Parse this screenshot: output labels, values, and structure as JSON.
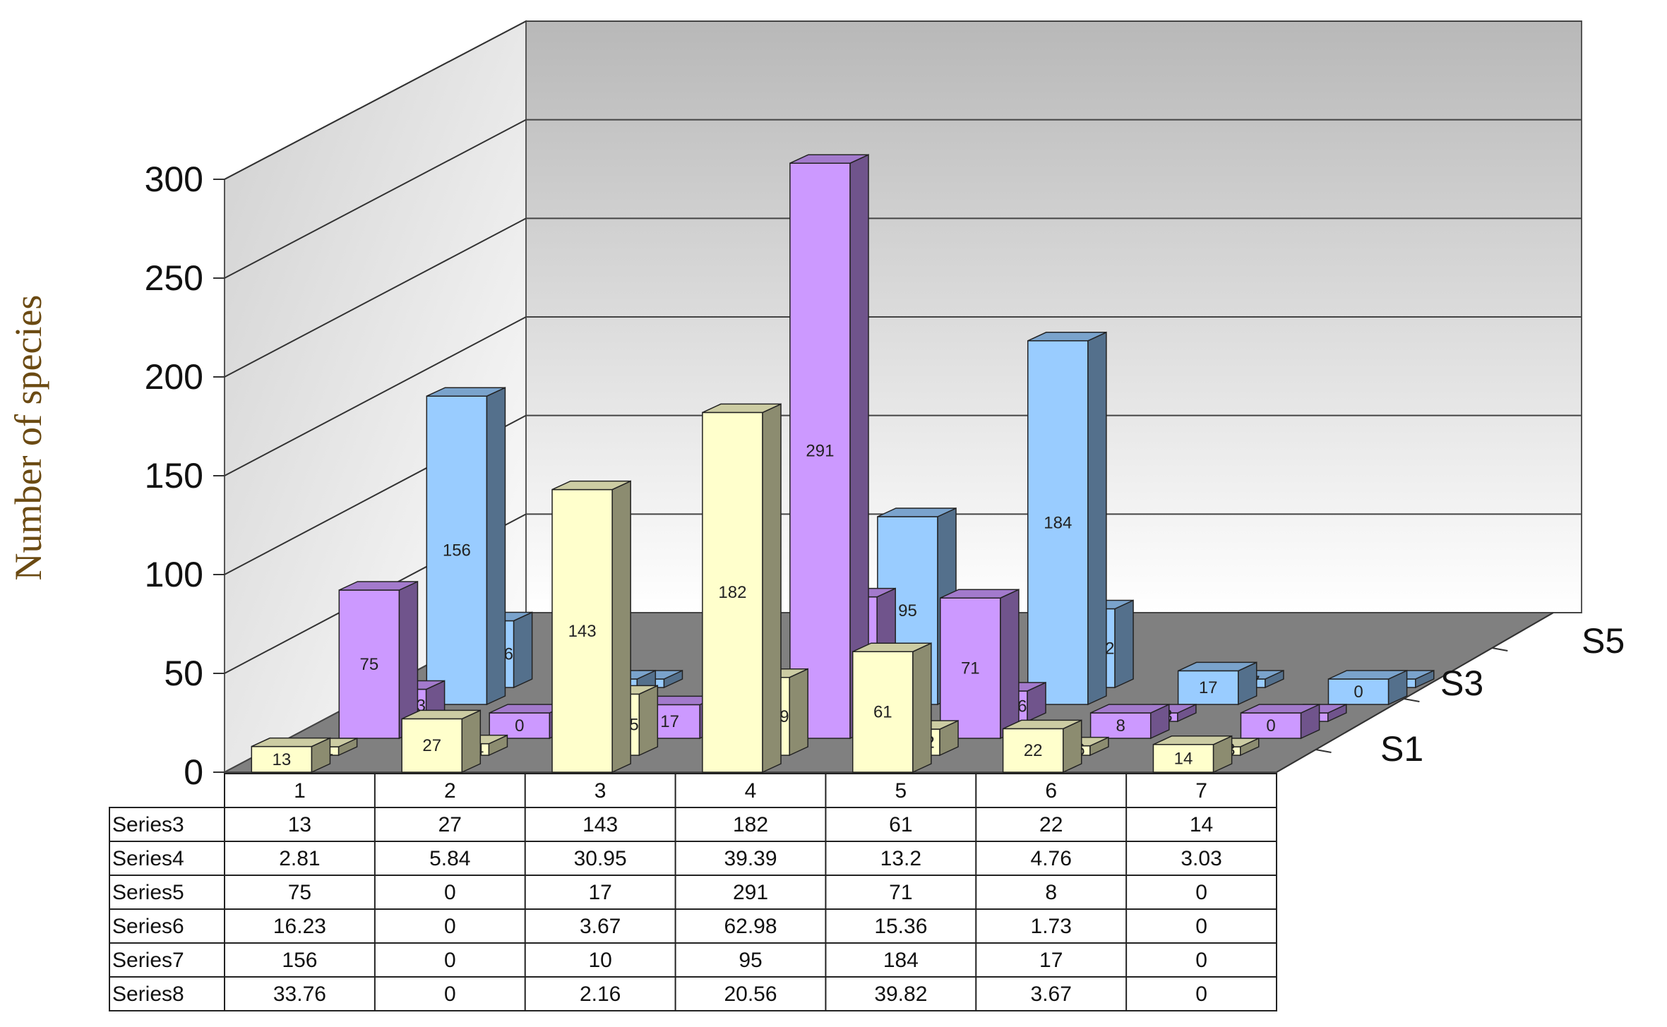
{
  "chart_data": {
    "type": "bar",
    "variant": "3d-column-with-data-table",
    "ylabel": "Number of species",
    "y_ticks": [
      "0",
      "50",
      "100",
      "150",
      "200",
      "250",
      "300"
    ],
    "ylim": [
      0,
      300
    ],
    "categories": [
      "1",
      "2",
      "3",
      "4",
      "5",
      "6",
      "7"
    ],
    "depth_labels": [
      "S1",
      "S3",
      "S5"
    ],
    "series": [
      {
        "name": "Series3",
        "values": [
          13,
          27,
          143,
          182,
          61,
          22,
          14
        ],
        "drawn_row": "S1",
        "color": "#ffffcc"
      },
      {
        "name": "Series4",
        "values": [
          2.81,
          5.84,
          30.95,
          39.39,
          13.2,
          4.76,
          3.03
        ],
        "drawn_row": "S2",
        "color": "#ffffcc"
      },
      {
        "name": "Series5",
        "values": [
          75,
          0,
          17,
          291,
          71,
          8,
          0
        ],
        "drawn_row": "S3",
        "color": "#cc99ff"
      },
      {
        "name": "Series6",
        "values": [
          16.23,
          0,
          3.67,
          62.98,
          15.36,
          1.73,
          0
        ],
        "drawn_row": "S4",
        "color": "#cc99ff"
      },
      {
        "name": "Series7",
        "values": [
          156,
          0,
          10,
          95,
          184,
          17,
          0
        ],
        "drawn_row": "S5",
        "color": "#99ccff"
      },
      {
        "name": "Series8",
        "values": [
          33.76,
          0,
          2.16,
          20.56,
          39.82,
          3.67,
          0
        ],
        "drawn_row": "S6",
        "color": "#99ccff"
      }
    ],
    "table_rows": [
      {
        "name": "Series3",
        "cells": [
          "13",
          "27",
          "143",
          "182",
          "61",
          "22",
          "14"
        ]
      },
      {
        "name": "Series4",
        "cells": [
          "2.81",
          "5.84",
          "30.95",
          "39.39",
          "13.2",
          "4.76",
          "3.03"
        ]
      },
      {
        "name": "Series5",
        "cells": [
          "75",
          "0",
          "17",
          "291",
          "71",
          "8",
          "0"
        ]
      },
      {
        "name": "Series6",
        "cells": [
          "16.23",
          "0",
          "3.67",
          "62.98",
          "15.36",
          "1.73",
          "0"
        ]
      },
      {
        "name": "Series7",
        "cells": [
          "156",
          "0",
          "10",
          "95",
          "184",
          "17",
          "0"
        ]
      },
      {
        "name": "Series8",
        "cells": [
          "33.76",
          "0",
          "2.16",
          "20.56",
          "39.82",
          "3.67",
          "0"
        ]
      }
    ],
    "grid": true,
    "legend": "none"
  }
}
